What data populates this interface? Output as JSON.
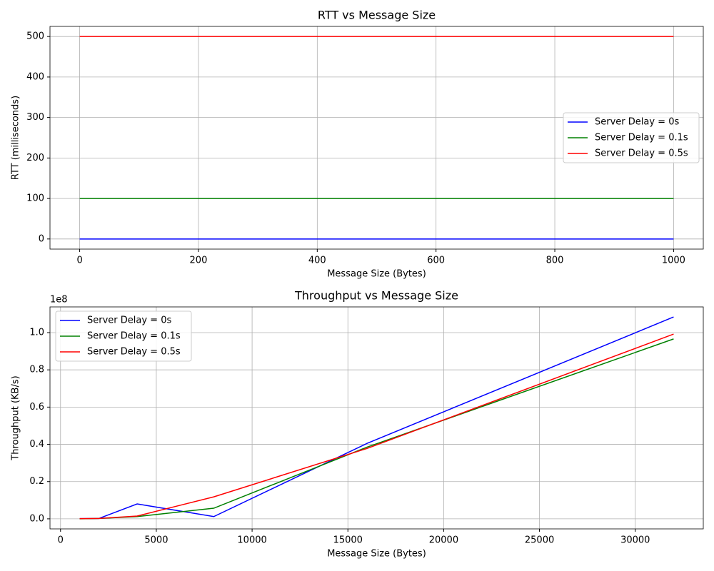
{
  "chart_data": [
    {
      "type": "line",
      "title": "RTT vs Message Size",
      "x_label": "Message Size (Bytes)",
      "y_label": "RTT (milliseconds)",
      "x": [
        0,
        1000
      ],
      "series": [
        {
          "name": "Server Delay = 0s",
          "color": "#0000ff",
          "values": [
            0,
            0
          ]
        },
        {
          "name": "Server Delay = 0.1s",
          "color": "#008000",
          "values": [
            100,
            100
          ]
        },
        {
          "name": "Server Delay = 0.5s",
          "color": "#ff0000",
          "values": [
            500,
            500
          ]
        }
      ],
      "xlim": [
        -50,
        1050
      ],
      "xticks": [
        0,
        200,
        400,
        600,
        800,
        1000
      ],
      "ylim": [
        -25,
        525
      ],
      "yticks": [
        0,
        100,
        200,
        300,
        400,
        500
      ],
      "grid": true,
      "legend": "right"
    },
    {
      "type": "line",
      "title": "Throughput vs Message Size",
      "x_label": "Message Size (Bytes)",
      "y_label": "Throughput (KB/s)",
      "y_offset_label": "1e8",
      "x": [
        1000,
        2000,
        4000,
        8000,
        16000,
        32000
      ],
      "series": [
        {
          "name": "Server Delay = 0s",
          "color": "#0000ff",
          "values": [
            100000,
            200000,
            8000000,
            1200000,
            40500000,
            108400000
          ]
        },
        {
          "name": "Server Delay = 0.1s",
          "color": "#008000",
          "values": [
            0,
            200000,
            1200000,
            5700000,
            38500000,
            96600000
          ]
        },
        {
          "name": "Server Delay = 0.5s",
          "color": "#ff0000",
          "values": [
            100000,
            200000,
            1500000,
            11800000,
            37800000,
            99200000
          ]
        }
      ],
      "xlim": [
        -550,
        33550
      ],
      "xticks": [
        0,
        5000,
        10000,
        15000,
        20000,
        25000,
        30000
      ],
      "ylim": [
        -5400000,
        113800000
      ],
      "yticks": [
        {
          "value": 0,
          "label": "0.0"
        },
        {
          "value": 20000000,
          "label": "0.2"
        },
        {
          "value": 40000000,
          "label": "0.4"
        },
        {
          "value": 60000000,
          "label": "0.6"
        },
        {
          "value": 80000000,
          "label": "0.8"
        },
        {
          "value": 100000000,
          "label": "1.0"
        }
      ],
      "grid": true,
      "legend": "upper left"
    }
  ]
}
